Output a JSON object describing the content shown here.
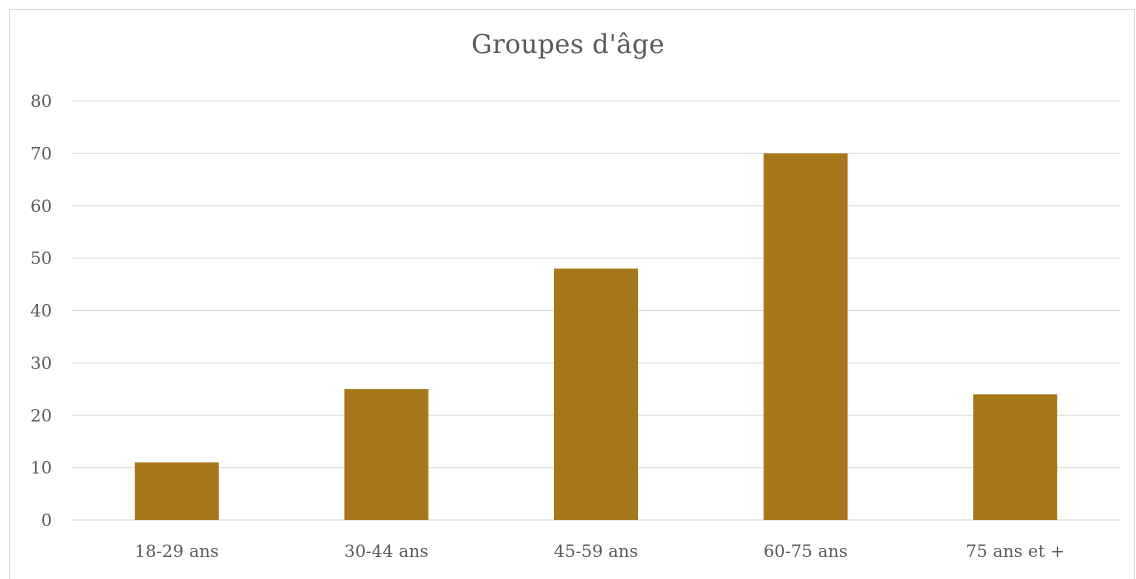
{
  "chart_data": {
    "type": "bar",
    "title": "Groupes d'âge",
    "categories": [
      "18-29 ans",
      "30-44 ans",
      "45-59 ans",
      "60-75 ans",
      "75 ans et +"
    ],
    "values": [
      11,
      25,
      48,
      70,
      24
    ],
    "xlabel": "",
    "ylabel": "",
    "ylim": [
      0,
      80
    ],
    "yticks": [
      "0",
      "10",
      "20",
      "30",
      "40",
      "50",
      "60",
      "70",
      "80"
    ],
    "grid": true,
    "legend": "none",
    "bar_color": "#A5761A",
    "gridline_color": "#D9D9D9",
    "text_color": "#595959"
  }
}
